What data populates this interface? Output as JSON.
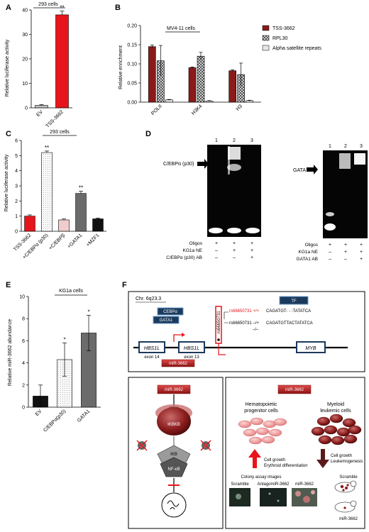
{
  "panels": {
    "A": {
      "letter": "A",
      "cells": "293 cells",
      "chart_data": {
        "type": "bar",
        "categories": [
          "EV",
          "TSS-3662"
        ],
        "values": [
          1,
          38
        ],
        "errors": [
          0.3,
          1.5
        ],
        "ylabel": "Relative luciferase activity",
        "ylim": [
          0,
          40
        ],
        "yticks": [
          "0",
          "10",
          "20",
          "30",
          "40"
        ],
        "significance": [
          "",
          "**"
        ],
        "colors": [
          "#bcbcbc",
          "#e8141b"
        ]
      }
    },
    "B": {
      "letter": "B",
      "cells": "MV4-11 cells",
      "chart_data": {
        "type": "bar",
        "categories": [
          "POLII",
          "H3K4",
          "H3"
        ],
        "series": [
          {
            "name": "TSS-3662",
            "values": [
              0.145,
              0.09,
              0.082
            ],
            "errors": [
              0.004,
              0.002,
              0.002
            ],
            "color": "#8b1a1a"
          },
          {
            "name": "RPL30",
            "values": [
              0.108,
              0.12,
              0.072
            ],
            "errors": [
              0.04,
              0.01,
              0.03
            ],
            "color": "#8c8c8c"
          },
          {
            "name": "Alpha satellite repeats",
            "values": [
              0.006,
              0.003,
              0.004
            ],
            "errors": [
              0.001,
              0.001,
              0.001
            ],
            "color": "#e6e6e6"
          }
        ],
        "ylabel": "Relative enrichment",
        "ylim": [
          0,
          0.2
        ],
        "yticks": [
          "0.00",
          "0.05",
          "0.10",
          "0.15",
          "0.20"
        ]
      }
    },
    "C": {
      "letter": "C",
      "cells": "293 cells",
      "chart_data": {
        "type": "bar",
        "categories": [
          "TSS-3662",
          "+C/EBPα (p30)",
          "+C/EBPβ",
          "+GATA1",
          "+MZF1"
        ],
        "values": [
          1.0,
          5.2,
          0.75,
          2.5,
          0.82
        ],
        "errors": [
          0.08,
          0.1,
          0.06,
          0.15,
          0.05
        ],
        "colors": [
          "#e8141b",
          "#f2f2f2",
          "#f3d6d6",
          "#6b6b6b",
          "#111111"
        ],
        "significance": [
          "",
          "**",
          "",
          "**",
          ""
        ],
        "ylabel": "Relative luciferase activity",
        "ylim": [
          0,
          6
        ],
        "yticks": [
          "0",
          "1",
          "2",
          "3",
          "4",
          "5",
          "6"
        ]
      }
    },
    "D": {
      "letter": "D",
      "left": {
        "label": "C/EBPα (p30)",
        "lanes": [
          "1",
          "2",
          "3"
        ],
        "rows": [
          {
            "name": "Oligos",
            "marks": [
              "+",
              "+",
              "+"
            ]
          },
          {
            "name": "KG1a NE",
            "marks": [
              "–",
              "+",
              "+"
            ]
          },
          {
            "name": "C/EBPα (p30) AB",
            "marks": [
              "–",
              "–",
              "+"
            ]
          }
        ]
      },
      "right": {
        "label": "GATA1",
        "lanes": [
          "1",
          "2",
          "3"
        ],
        "rows": [
          {
            "name": "Oligos",
            "marks": [
              "+",
              "+",
              "+"
            ]
          },
          {
            "name": "KG1a NE",
            "marks": [
              "–",
              "+",
              "+"
            ]
          },
          {
            "name": "GATA1 AB",
            "marks": [
              "–",
              "–",
              "+"
            ]
          }
        ]
      }
    },
    "E": {
      "letter": "E",
      "cells": "KG1a cells",
      "chart_data": {
        "type": "bar",
        "categories": [
          "EV",
          "C/EBPα(p30)",
          "GATA1"
        ],
        "values": [
          1.0,
          4.3,
          6.7
        ],
        "errors": [
          1.0,
          1.5,
          1.6
        ],
        "colors": [
          "#111111",
          "#f2f2f2",
          "#6b6b6b"
        ],
        "significance": [
          "",
          "*",
          "*"
        ],
        "ylabel": "Relative miR-3662 abundance",
        "ylim": [
          0,
          10
        ],
        "yticks": [
          "0",
          "2",
          "4",
          "6",
          "8",
          "10"
        ]
      }
    },
    "F": {
      "letter": "F",
      "chr": "Chr. 6q23.3",
      "tf": "TF",
      "cebp": "CEBPα",
      "gata": "GATA1",
      "snp_id": "rs66650731",
      "snp_wt": "rs66650731 +/+",
      "snp_mut": "rs66650731 –/+",
      "snp_mut2": "–/–",
      "seq_wt": "CAGATGT- - -TATATCA",
      "seq_mut": "CAGATGTTACTATATCA",
      "gene1": "HBS1L",
      "gene2": "HBS1L",
      "gene3": "MYB",
      "exon14": "exon 14",
      "exon13": "exon 13",
      "mir": "miR-3662",
      "ikbkb": "IKBKB",
      "p1": "P",
      "p2": "P",
      "ikb": "IKB",
      "nfkb": "NF-κB",
      "hpc": "Hematopoietic progenitor cells",
      "mlc": "Myeloid leukemic cells",
      "growth_up": "Cell growth Erythroid differentiation",
      "growth_down": "Cell growth Leukemogenesis",
      "colony": "Colony assay images",
      "scramble1": "Scramble",
      "antago": "AntagomiR-3662",
      "mir2": "miR-3662",
      "scramble2": "Scramble",
      "mir3": "miR-3662"
    }
  }
}
